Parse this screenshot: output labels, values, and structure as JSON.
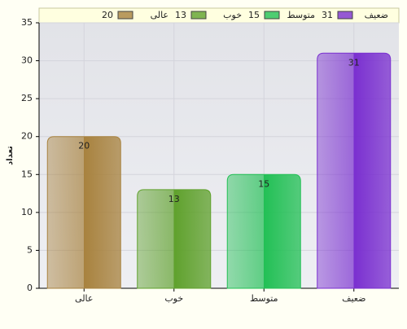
{
  "chart_data": {
    "type": "bar",
    "y_label": "تعداد",
    "categories": [
      "عالی",
      "خوب",
      "متوسط",
      "ضعیف"
    ],
    "values": [
      20,
      13,
      15,
      31
    ],
    "colors": [
      "#a8823e",
      "#5fa12c",
      "#22c055",
      "#7a2fd0"
    ],
    "ylim": [
      0,
      35
    ],
    "yticks": [
      0,
      5,
      10,
      15,
      20,
      25,
      30,
      35
    ],
    "grid": true,
    "legend": "top"
  }
}
